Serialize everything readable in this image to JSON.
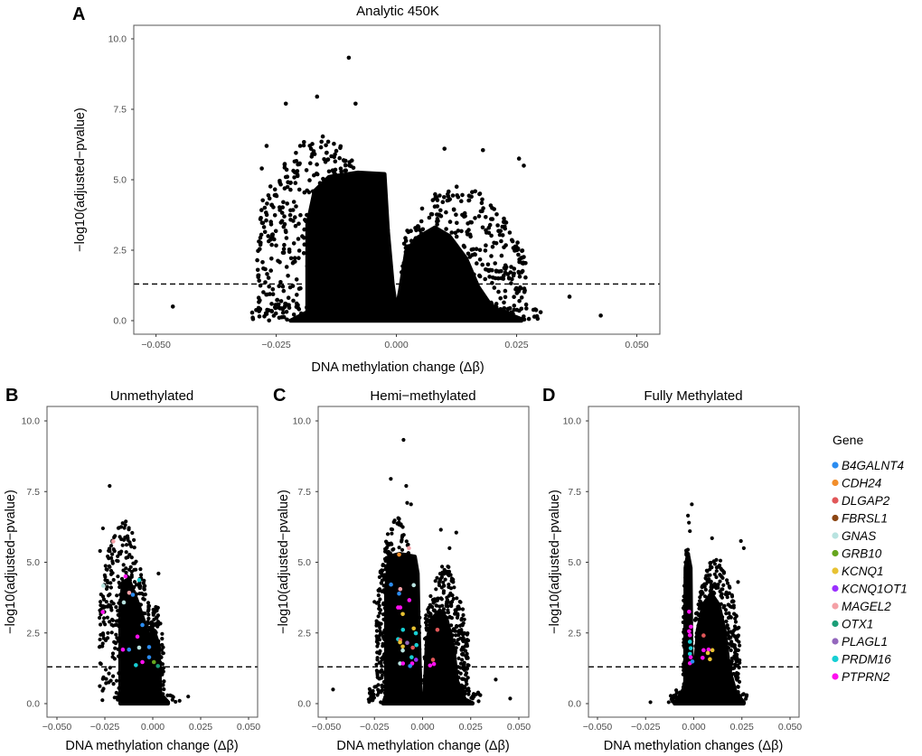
{
  "chart_data": [
    {
      "id": "A",
      "type": "scatter",
      "panel_letter": "A",
      "title": "Analytic 450K",
      "xlabel": "DNA methylation change (Δβ)",
      "ylabel": "−log10(adjusted−pvalue)",
      "xlim": [
        -0.055,
        0.055
      ],
      "ylim": [
        -0.5,
        10.5
      ],
      "xticks": [
        "−0.050",
        "−0.025",
        "0.000",
        "0.025",
        "0.050"
      ],
      "xtick_values": [
        -0.05,
        -0.025,
        0,
        0.025,
        0.05
      ],
      "yticks": [
        "0.0",
        "2.5",
        "5.0",
        "7.5",
        "10.0"
      ],
      "ytick_values": [
        0,
        2.5,
        5,
        7.5,
        10
      ],
      "threshold": 1.3,
      "grid": false,
      "notable_points": [
        [
          -0.0099,
          9.33
        ],
        [
          -0.0165,
          7.95
        ],
        [
          -0.023,
          7.7
        ],
        [
          -0.0085,
          7.7
        ],
        [
          -0.027,
          6.2
        ],
        [
          -0.028,
          5.4
        ],
        [
          0.0255,
          5.75
        ],
        [
          0.0265,
          5.5
        ],
        [
          0.018,
          6.05
        ],
        [
          0.01,
          6.1
        ],
        [
          -0.0465,
          0.5
        ],
        [
          0.036,
          0.85
        ],
        [
          0.0425,
          0.18
        ],
        [
          0.03,
          0.3
        ],
        [
          -0.0285,
          0.15
        ]
      ],
      "highlighted": []
    },
    {
      "id": "B",
      "type": "scatter",
      "panel_letter": "B",
      "title": "Unmethylated",
      "xlabel": "DNA methylation change (Δβ)",
      "ylabel": "−log10(adjusted−pvalue)",
      "xlim": [
        -0.055,
        0.055
      ],
      "ylim": [
        -0.5,
        10.5
      ],
      "xticks": [
        "−0.050",
        "−0.025",
        "0.000",
        "0.025",
        "0.050"
      ],
      "xtick_values": [
        -0.05,
        -0.025,
        0,
        0.025,
        0.05
      ],
      "yticks": [
        "0.0",
        "2.5",
        "5.0",
        "7.5",
        "10.0"
      ],
      "ytick_values": [
        0,
        2.5,
        5,
        7.5,
        10
      ],
      "threshold": 1.3,
      "grid": false,
      "notable_points": [
        [
          -0.0225,
          7.7
        ],
        [
          -0.026,
          6.2
        ],
        [
          -0.0275,
          5.4
        ],
        [
          0.003,
          4.6
        ],
        [
          0.0185,
          0.25
        ],
        [
          0.014,
          0.1
        ],
        [
          -0.0245,
          1.2
        ],
        [
          -0.023,
          0.75
        ]
      ],
      "highlighted": [
        {
          "gene": "MAGEL2",
          "x": -0.0206,
          "y": 5.74
        },
        {
          "gene": "GNAS",
          "x": -0.0258,
          "y": 4.17
        },
        {
          "gene": "PTPRN2",
          "x": -0.0261,
          "y": 3.24
        },
        {
          "gene": "PTPRN2",
          "x": -0.0142,
          "y": 4.5
        },
        {
          "gene": "PRDM16",
          "x": -0.0071,
          "y": 4.37
        },
        {
          "gene": "MAGEL2",
          "x": -0.0123,
          "y": 3.92
        },
        {
          "gene": "B4GALNT4",
          "x": -0.0104,
          "y": 3.85
        },
        {
          "gene": "GNAS",
          "x": -0.0151,
          "y": 3.58
        },
        {
          "gene": "B4GALNT4",
          "x": -0.0054,
          "y": 2.78
        },
        {
          "gene": "PTPRN2",
          "x": -0.008,
          "y": 2.37
        },
        {
          "gene": "PTPRN2",
          "x": -0.0156,
          "y": 1.91
        },
        {
          "gene": "B4GALNT4",
          "x": -0.0124,
          "y": 1.91
        },
        {
          "gene": "GNAS",
          "x": -0.0071,
          "y": 1.98
        },
        {
          "gene": "B4GALNT4",
          "x": -0.0019,
          "y": 2.0
        },
        {
          "gene": "B4GALNT4",
          "x": -0.0019,
          "y": 1.64
        },
        {
          "gene": "PTPRN2",
          "x": -0.0054,
          "y": 1.47
        },
        {
          "gene": "GRB10",
          "x": 0.0006,
          "y": 1.47
        },
        {
          "gene": "PRDM16",
          "x": -0.0088,
          "y": 1.36
        },
        {
          "gene": "OTX1",
          "x": 0.0027,
          "y": 1.33
        }
      ]
    },
    {
      "id": "C",
      "type": "scatter",
      "panel_letter": "C",
      "title": "Hemi−methylated",
      "xlabel": "DNA methylation change (Δβ)",
      "ylabel": "−log10(adjusted−pvalue)",
      "xlim": [
        -0.055,
        0.055
      ],
      "ylim": [
        -0.5,
        10.5
      ],
      "xticks": [
        "−0.050",
        "−0.025",
        "0.000",
        "0.025",
        "0.050"
      ],
      "xtick_values": [
        -0.05,
        -0.025,
        0,
        0.025,
        0.05
      ],
      "yticks": [
        "0.0",
        "2.5",
        "5.0",
        "7.5",
        "10.0"
      ],
      "ytick_values": [
        0,
        2.5,
        5,
        7.5,
        10
      ],
      "threshold": 1.3,
      "grid": false,
      "notable_points": [
        [
          -0.0099,
          9.33
        ],
        [
          -0.0165,
          7.95
        ],
        [
          -0.0085,
          7.7
        ],
        [
          -0.008,
          7.1
        ],
        [
          -0.006,
          7.05
        ],
        [
          0.0095,
          6.15
        ],
        [
          0.0175,
          6.05
        ],
        [
          0.014,
          5.5
        ],
        [
          -0.025,
          3.6
        ],
        [
          -0.0465,
          0.5
        ],
        [
          0.038,
          0.85
        ],
        [
          0.0455,
          0.18
        ],
        [
          0.03,
          0.3
        ],
        [
          -0.028,
          0.15
        ]
      ],
      "highlighted": [
        {
          "gene": "MAGEL2",
          "x": -0.0071,
          "y": 5.5
        },
        {
          "gene": "CDH24",
          "x": -0.0122,
          "y": 5.27
        },
        {
          "gene": "B4GALNT4",
          "x": -0.0164,
          "y": 4.21
        },
        {
          "gene": "MAGEL2",
          "x": -0.0116,
          "y": 4.05
        },
        {
          "gene": "B4GALNT4",
          "x": -0.0122,
          "y": 3.89
        },
        {
          "gene": "GNAS",
          "x": -0.0046,
          "y": 4.19
        },
        {
          "gene": "PTPRN2",
          "x": -0.0069,
          "y": 3.66
        },
        {
          "gene": "PTPRN2",
          "x": -0.0127,
          "y": 3.4
        },
        {
          "gene": "PTPRN2",
          "x": -0.0116,
          "y": 3.4
        },
        {
          "gene": "KCNQ1",
          "x": -0.0103,
          "y": 3.17
        },
        {
          "gene": "PRDM16",
          "x": -0.0102,
          "y": 2.61
        },
        {
          "gene": "KCNQ1",
          "x": -0.0046,
          "y": 2.66
        },
        {
          "gene": "PRDM16",
          "x": -0.0035,
          "y": 2.49
        },
        {
          "gene": "DLGAP2",
          "x": 0.0077,
          "y": 2.61
        },
        {
          "gene": "PRDM16",
          "x": -0.0127,
          "y": 2.28
        },
        {
          "gene": "DLGAP2",
          "x": -0.0116,
          "y": 2.25
        },
        {
          "gene": "KCNQ1",
          "x": -0.0117,
          "y": 2.17
        },
        {
          "gene": "PLAGL1",
          "x": -0.008,
          "y": 2.15
        },
        {
          "gene": "PRDM16",
          "x": -0.0032,
          "y": 2.07
        },
        {
          "gene": "KCNQ1",
          "x": -0.0103,
          "y": 2.02
        },
        {
          "gene": "DLGAP2",
          "x": -0.0051,
          "y": 1.98
        },
        {
          "gene": "GNAS",
          "x": -0.0103,
          "y": 1.88
        },
        {
          "gene": "PRDM16",
          "x": -0.0057,
          "y": 1.64
        },
        {
          "gene": "KCNQ1OT1",
          "x": -0.0034,
          "y": 1.55
        },
        {
          "gene": "DLGAP2",
          "x": 0.0054,
          "y": 1.55
        },
        {
          "gene": "GNAS",
          "x": -0.0117,
          "y": 1.42
        },
        {
          "gene": "PTPRN2",
          "x": -0.0102,
          "y": 1.42
        },
        {
          "gene": "PTPRN2",
          "x": -0.0054,
          "y": 1.42
        },
        {
          "gene": "PTPRN2",
          "x": 0.0059,
          "y": 1.4
        },
        {
          "gene": "PTPRN2",
          "x": 0.0039,
          "y": 1.35
        },
        {
          "gene": "B4GALNT4",
          "x": -0.0065,
          "y": 1.33
        }
      ]
    },
    {
      "id": "D",
      "type": "scatter",
      "panel_letter": "D",
      "title": "Fully Methylated",
      "xlabel": "DNA methylation changes (Δβ)",
      "ylabel": "−log10(adjusted−pvalue)",
      "xlim": [
        -0.055,
        0.055
      ],
      "ylim": [
        -0.5,
        10.5
      ],
      "xticks": [
        "−0.050",
        "−0.025",
        "0.000",
        "0.025",
        "0.050"
      ],
      "xtick_values": [
        -0.05,
        -0.025,
        0,
        0.025,
        0.05
      ],
      "yticks": [
        "0.0",
        "2.5",
        "5.0",
        "7.5",
        "10.0"
      ],
      "ytick_values": [
        0,
        2.5,
        5,
        7.5,
        10
      ],
      "threshold": 1.3,
      "grid": false,
      "notable_points": [
        [
          -0.001,
          7.05
        ],
        [
          -0.003,
          6.65
        ],
        [
          -0.0025,
          6.4
        ],
        [
          -0.002,
          6.1
        ],
        [
          0.0095,
          5.85
        ],
        [
          0.0245,
          5.75
        ],
        [
          0.026,
          5.5
        ],
        [
          0.023,
          4.3
        ],
        [
          -0.0225,
          0.05
        ],
        [
          -0.013,
          0.05
        ],
        [
          0.0275,
          0.3
        ]
      ],
      "highlighted": [
        {
          "gene": "PTPRN2",
          "x": -0.0024,
          "y": 3.25
        },
        {
          "gene": "PTPRN2",
          "x": -0.0015,
          "y": 2.72
        },
        {
          "gene": "PTPRN2",
          "x": -0.0024,
          "y": 2.56
        },
        {
          "gene": "PTPRN2",
          "x": -0.002,
          "y": 2.42
        },
        {
          "gene": "PRDM16",
          "x": -0.002,
          "y": 2.19
        },
        {
          "gene": "PRDM16",
          "x": -0.0016,
          "y": 1.96
        },
        {
          "gene": "PRDM16",
          "x": -0.002,
          "y": 1.76
        },
        {
          "gene": "PTPRN2",
          "x": -0.0016,
          "y": 1.64
        },
        {
          "gene": "PTPRN2",
          "x": -0.002,
          "y": 1.43
        },
        {
          "gene": "B4GALNT4",
          "x": -0.0007,
          "y": 1.49
        },
        {
          "gene": "DLGAP2",
          "x": 0.0051,
          "y": 2.41
        },
        {
          "gene": "PTPRN2",
          "x": 0.0051,
          "y": 1.89
        },
        {
          "gene": "PTPRN2",
          "x": 0.0077,
          "y": 1.91
        },
        {
          "gene": "KCNQ1",
          "x": 0.0097,
          "y": 1.89
        },
        {
          "gene": "KCNQ1",
          "x": 0.0073,
          "y": 1.79
        },
        {
          "gene": "PTPRN2",
          "x": 0.0046,
          "y": 1.62
        },
        {
          "gene": "KCNQ1",
          "x": 0.0084,
          "y": 1.57
        }
      ]
    }
  ],
  "legend": {
    "title": "Gene",
    "items": [
      {
        "label": "B4GALNT4",
        "color": "#2b8cf0"
      },
      {
        "label": "CDH24",
        "color": "#f28e2b"
      },
      {
        "label": "DLGAP2",
        "color": "#e15759"
      },
      {
        "label": "FBRSL1",
        "color": "#8b4513"
      },
      {
        "label": "GNAS",
        "color": "#b8e3e0"
      },
      {
        "label": "GRB10",
        "color": "#66a61e"
      },
      {
        "label": "KCNQ1",
        "color": "#e8c232"
      },
      {
        "label": "KCNQ1OT1",
        "color": "#9b30ff"
      },
      {
        "label": "MAGEL2",
        "color": "#f4a0a6"
      },
      {
        "label": "OTX1",
        "color": "#1b9e77"
      },
      {
        "label": "PLAGL1",
        "color": "#9467bd"
      },
      {
        "label": "PRDM16",
        "color": "#17cfd4"
      },
      {
        "label": "PTPRN2",
        "color": "#ff10f0"
      }
    ]
  },
  "colors": {
    "points": "#000000",
    "threshold_line": "#000000",
    "frame": "#555555"
  }
}
